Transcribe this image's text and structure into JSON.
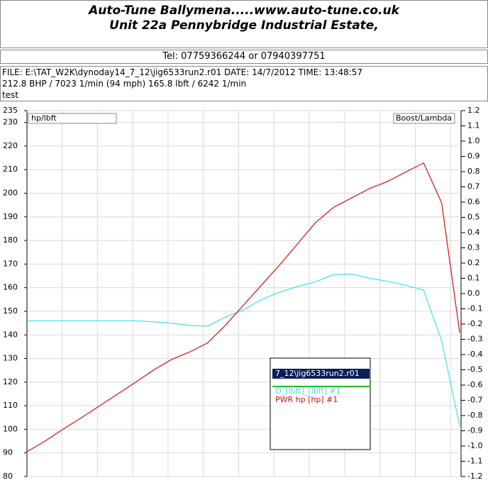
{
  "header": {
    "title": "Auto-Tune Ballymena.....www.auto-tune.co.uk",
    "subtitle": "Unit 22a Pennybridge Industrial Estate,",
    "phone": "Tel: 07759366244 or 07940397751"
  },
  "info": {
    "lines": [
      "FILE: E:\\TAT_W2K\\dynoday14_7_12\\jig6533run2.r01  DATE: 14/7/2012  TIME: 13:48:57",
      "212.8 BHP / 7023 1/min (94 mph)    165.8 lbft / 6242 1/min",
      "test"
    ]
  },
  "chart_data": {
    "type": "line",
    "y_label": "hp/lbft",
    "y2_label": "Boost/Lambda",
    "legend_title": "7_12\\jig6533run2.r01",
    "ylim": [
      80,
      235
    ],
    "yticks": [
      235,
      230,
      220,
      210,
      200,
      190,
      180,
      170,
      160,
      150,
      140,
      130,
      120,
      110,
      100,
      90,
      80
    ],
    "y2lim": [
      -1.2,
      1.2
    ],
    "y2ticks": [
      1.2,
      1.1,
      {
        "value": 1,
        "label": "1.0"
      },
      0.9,
      0.8,
      0.7,
      0.6,
      0.5,
      0.4,
      0.3,
      0.2,
      0.1,
      {
        "value": 0,
        "label": "0.0"
      },
      -0.1,
      -0.2,
      -0.3,
      -0.4,
      -0.5,
      -0.6,
      -0.7,
      -0.8,
      -0.9,
      {
        "value": -1,
        "label": "-1.0"
      },
      -1.1,
      -1.2
    ],
    "grid": true,
    "series": [
      {
        "name": "O_[lbft]_[lbft] #1",
        "color": "#40e0e8",
        "values": [
          146,
          146,
          146,
          146,
          146,
          146,
          146,
          145.5,
          145,
          144,
          143.7,
          147.5,
          150.5,
          155,
          158,
          160.5,
          162.5,
          165.5,
          165.8,
          164,
          162.7,
          161,
          159,
          137.5,
          101.5
        ]
      },
      {
        "name": "PWR  hp  [hp] #1",
        "color": "#d01010",
        "values": [
          90.5,
          95,
          100,
          104.8,
          109.8,
          114.8,
          119.8,
          125,
          129.5,
          132.7,
          136.5,
          144,
          152.5,
          161,
          169.5,
          178.5,
          187.5,
          194,
          198,
          202,
          205,
          209,
          212.8,
          196,
          141
        ]
      }
    ]
  }
}
